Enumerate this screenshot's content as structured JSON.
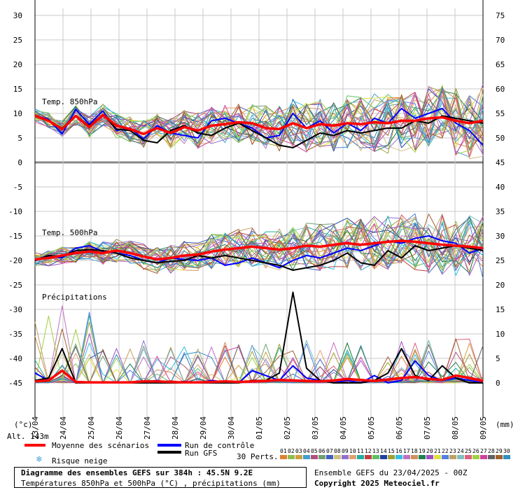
{
  "chart_data": {
    "type": "line",
    "xlabels": [
      "23/04",
      "24/04",
      "25/04",
      "26/04",
      "27/04",
      "28/04",
      "29/04",
      "30/04",
      "01/05",
      "02/05",
      "03/05",
      "04/05",
      "05/05",
      "06/05",
      "07/05",
      "08/05",
      "09/05"
    ],
    "left_ticks": [
      "30",
      "25",
      "20",
      "15",
      "10",
      "5",
      "0",
      "-5",
      "-10",
      "-15",
      "-20",
      "-25",
      "-30",
      "-35",
      "-40",
      "-45"
    ],
    "right_ticks": [
      "75",
      "70",
      "65",
      "60",
      "55",
      "50",
      "45",
      "40",
      "35",
      "30",
      "25",
      "20",
      "15",
      "10",
      "5",
      "0"
    ],
    "left_unit": "(°c)",
    "right_unit": "(mm)",
    "panel_labels": {
      "t850": "Temp. 850hPa",
      "t500": "Temp. 500hPa",
      "precip": "Précipitations"
    },
    "t850": {
      "mean": [
        9.5,
        8.5,
        6.8,
        9.5,
        7.2,
        9.7,
        7.5,
        6.8,
        5.8,
        7.0,
        6.0,
        7.2,
        6.5,
        7.5,
        7.8,
        8.2,
        8.0,
        7.0,
        6.8,
        8.0,
        7.0,
        7.8,
        7.5,
        8.0,
        7.8,
        8.2,
        8.0,
        8.5,
        8.5,
        9.0,
        9.2,
        8.5,
        8.0,
        8.5
      ],
      "control": [
        9.5,
        8.8,
        5.8,
        10.8,
        7.8,
        10.5,
        6.5,
        7.0,
        4.8,
        7.5,
        6.0,
        5.5,
        5.0,
        8.5,
        9.0,
        8.0,
        7.0,
        5.0,
        5.5,
        10.0,
        7.0,
        8.5,
        6.0,
        8.0,
        6.5,
        9.0,
        8.0,
        11.0,
        9.0,
        10.0,
        11.0,
        8.0,
        6.5,
        3.5
      ],
      "gfs": [
        9.5,
        8.5,
        7.0,
        9.5,
        7.5,
        9.8,
        6.8,
        6.5,
        4.5,
        4.0,
        6.5,
        7.5,
        6.0,
        5.5,
        7.0,
        8.0,
        6.5,
        5.0,
        3.5,
        3.0,
        4.5,
        6.0,
        5.5,
        6.5,
        6.0,
        6.5,
        7.0,
        7.0,
        8.5,
        8.0,
        9.5,
        9.0,
        8.5,
        8.0
      ]
    },
    "t500": {
      "mean": [
        -19.8,
        -19.5,
        -19.0,
        -18.5,
        -18.2,
        -18.5,
        -18.0,
        -18.5,
        -19.2,
        -19.8,
        -19.5,
        -19.0,
        -18.8,
        -18.2,
        -17.8,
        -17.5,
        -17.2,
        -17.5,
        -17.8,
        -17.5,
        -17.0,
        -17.2,
        -16.8,
        -16.5,
        -16.8,
        -16.5,
        -16.2,
        -16.0,
        -16.2,
        -16.5,
        -16.8,
        -17.0,
        -17.2,
        -17.5
      ],
      "control": [
        -20.0,
        -19.2,
        -19.5,
        -17.5,
        -17.0,
        -18.2,
        -18.5,
        -19.0,
        -20.0,
        -20.5,
        -19.5,
        -19.8,
        -20.0,
        -19.5,
        -21.0,
        -20.5,
        -19.5,
        -20.5,
        -21.5,
        -20.0,
        -19.0,
        -19.5,
        -18.5,
        -17.5,
        -18.0,
        -17.0,
        -16.0,
        -16.5,
        -15.5,
        -15.0,
        -16.0,
        -16.5,
        -18.5,
        -17.5
      ],
      "gfs": [
        -20.0,
        -19.0,
        -19.2,
        -18.0,
        -17.8,
        -18.0,
        -18.5,
        -19.5,
        -20.0,
        -20.5,
        -20.2,
        -20.0,
        -19.0,
        -19.5,
        -19.0,
        -19.5,
        -20.0,
        -20.5,
        -21.0,
        -22.0,
        -21.5,
        -21.0,
        -20.0,
        -18.5,
        -20.5,
        -21.0,
        -18.0,
        -19.5,
        -17.0,
        -18.0,
        -17.5,
        -17.0,
        -17.5,
        -18.0
      ]
    },
    "precip": {
      "mean": [
        0.3,
        0.5,
        2.5,
        0.2,
        0.1,
        0.1,
        0.1,
        0.1,
        0.3,
        0.3,
        0.2,
        0.1,
        0.1,
        0.2,
        0.3,
        0.2,
        0.3,
        0.4,
        0.6,
        0.5,
        0.4,
        0.3,
        0.5,
        0.8,
        0.6,
        0.4,
        0.7,
        1.0,
        1.2,
        0.8,
        0.6,
        1.5,
        1.0,
        0.4
      ],
      "control": [
        2.0,
        0.5,
        2.5,
        0.0,
        0.0,
        0.0,
        0.0,
        0.0,
        0.2,
        0.5,
        0.0,
        0.3,
        0.0,
        0.5,
        0.2,
        0.0,
        2.5,
        1.5,
        0.5,
        3.5,
        1.0,
        0.5,
        0.0,
        0.5,
        0.0,
        1.5,
        0.0,
        0.5,
        4.5,
        1.5,
        0.5,
        1.0,
        0.5,
        0.0
      ],
      "gfs": [
        0.5,
        1.0,
        7.0,
        0.0,
        0.0,
        0.0,
        0.0,
        0.0,
        0.0,
        0.0,
        0.0,
        0.0,
        0.0,
        0.0,
        0.0,
        0.0,
        0.5,
        0.5,
        2.0,
        18.5,
        3.0,
        0.5,
        0.0,
        0.0,
        0.0,
        0.5,
        2.0,
        7.0,
        1.5,
        0.5,
        3.5,
        1.0,
        0.0,
        0.0
      ]
    }
  },
  "alt_label": "Alt. 143m",
  "legend": {
    "mean": "Moyenne des scénarios",
    "control": "Run de contrôle",
    "gfs": "Run GFS",
    "snow": "Risque neige",
    "perts": "30 Perts."
  },
  "perturbations": {
    "labels": [
      "01",
      "02",
      "03",
      "04",
      "05",
      "06",
      "07",
      "08",
      "09",
      "10",
      "11",
      "12",
      "13",
      "14",
      "15",
      "16",
      "17",
      "18",
      "19",
      "20",
      "21",
      "22",
      "23",
      "24",
      "25",
      "26",
      "27",
      "28",
      "29",
      "30"
    ],
    "colors": [
      "#e08030",
      "#8fbc50",
      "#d0a040",
      "#40a0d0",
      "#b05080",
      "#70a070",
      "#4060c0",
      "#d0c080",
      "#9070d0",
      "#e0a070",
      "#20b0a0",
      "#c04040",
      "#60c060",
      "#2040a0",
      "#a0a030",
      "#30c0e0",
      "#c070c0",
      "#d09060",
      "#208050",
      "#a050c0",
      "#e0e040",
      "#5080e0",
      "#c0a060",
      "#80c0c0",
      "#e06080",
      "#a0d040",
      "#d040a0",
      "#606060",
      "#a06030",
      "#3090c0"
    ]
  },
  "title": {
    "line1": "Diagramme des ensembles GEFS sur 384h : 45.5N 9.2E",
    "line2": "Températures 850hPa et 500hPa (°C) , précipitations (mm)"
  },
  "run_info": "Ensemble GEFS du 23/04/2025 - 00Z",
  "copyright": "Copyright 2025 Meteociel.fr"
}
